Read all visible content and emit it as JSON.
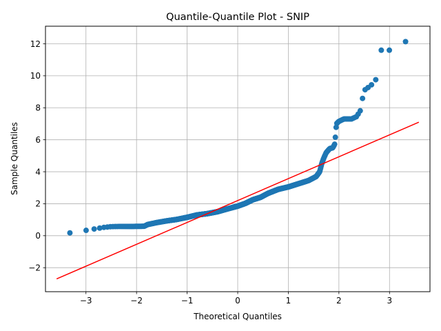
{
  "chart_data": {
    "type": "scatter",
    "title": "Quantile-Quantile Plot - SNIP",
    "xlabel": "Theoretical Quantiles",
    "ylabel": "Sample Quantiles",
    "xlim": [
      -3.8,
      3.8
    ],
    "ylim": [
      -3.5,
      13.1
    ],
    "xticks": [
      -3,
      -2,
      -1,
      0,
      1,
      2,
      3
    ],
    "xtick_labels": [
      "−3",
      "−2",
      "−1",
      "0",
      "1",
      "2",
      "3"
    ],
    "yticks": [
      -2,
      0,
      2,
      4,
      6,
      8,
      10,
      12
    ],
    "ytick_labels": [
      "−2",
      "0",
      "2",
      "4",
      "6",
      "8",
      "10",
      "12"
    ],
    "grid": true,
    "point_color": "#1f77b4",
    "line_color": "#ff0000",
    "reference_line": {
      "x": [
        -3.58,
        3.58
      ],
      "y": [
        -2.7,
        7.1
      ]
    },
    "curve_points": [
      [
        -3.58,
        0.15
      ],
      [
        -3.4,
        0.15
      ],
      [
        -3.25,
        0.2
      ],
      [
        -3.1,
        0.28
      ],
      [
        -2.95,
        0.36
      ],
      [
        -2.8,
        0.44
      ],
      [
        -2.65,
        0.52
      ],
      [
        -2.5,
        0.57
      ],
      [
        -2.3,
        0.58
      ],
      [
        -2.1,
        0.58
      ],
      [
        -1.85,
        0.59
      ],
      [
        -1.78,
        0.7
      ],
      [
        -1.6,
        0.82
      ],
      [
        -1.4,
        0.93
      ],
      [
        -1.2,
        1.02
      ],
      [
        -1.0,
        1.15
      ],
      [
        -0.8,
        1.3
      ],
      [
        -0.6,
        1.38
      ],
      [
        -0.4,
        1.5
      ],
      [
        -0.2,
        1.68
      ],
      [
        0.0,
        1.85
      ],
      [
        0.15,
        2.02
      ],
      [
        0.3,
        2.25
      ],
      [
        0.45,
        2.4
      ],
      [
        0.6,
        2.65
      ],
      [
        0.8,
        2.9
      ],
      [
        1.0,
        3.05
      ],
      [
        1.2,
        3.25
      ],
      [
        1.4,
        3.45
      ],
      [
        1.55,
        3.7
      ],
      [
        1.62,
        4.0
      ],
      [
        1.66,
        4.5
      ],
      [
        1.7,
        4.85
      ],
      [
        1.75,
        5.2
      ],
      [
        1.82,
        5.45
      ],
      [
        1.88,
        5.5
      ],
      [
        1.92,
        5.75
      ],
      [
        1.95,
        7.0
      ],
      [
        2.0,
        7.15
      ],
      [
        2.1,
        7.3
      ],
      [
        2.25,
        7.3
      ],
      [
        2.35,
        7.45
      ],
      [
        2.42,
        7.8
      ],
      [
        2.45,
        8.0
      ],
      [
        2.48,
        9.05
      ],
      [
        2.55,
        9.2
      ],
      [
        2.65,
        9.45
      ],
      [
        2.72,
        9.6
      ],
      [
        2.75,
        10.15
      ],
      [
        2.8,
        11.6
      ],
      [
        2.95,
        11.6
      ],
      [
        3.15,
        11.6
      ],
      [
        3.27,
        12.05
      ],
      [
        3.38,
        12.25
      ],
      [
        3.57,
        12.25
      ]
    ],
    "sample_size": 1100
  }
}
